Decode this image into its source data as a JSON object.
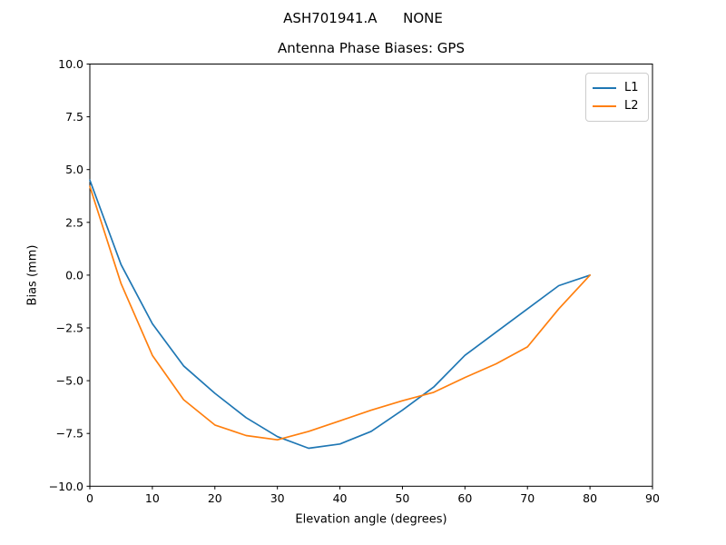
{
  "figure": {
    "suptitle": "ASH701941.A      NONE",
    "background": "#ffffff"
  },
  "chart_data": {
    "type": "line",
    "title": "Antenna Phase Biases: GPS",
    "xlabel": "Elevation angle (degrees)",
    "ylabel": "Bias (mm)",
    "xlim": [
      0,
      90
    ],
    "ylim": [
      -10,
      10
    ],
    "grid": false,
    "legend_position": "upper right",
    "xticks": [
      0,
      10,
      20,
      30,
      40,
      50,
      60,
      70,
      80,
      90
    ],
    "xtick_labels": [
      "0",
      "10",
      "20",
      "30",
      "40",
      "50",
      "60",
      "70",
      "80",
      "90"
    ],
    "yticks": [
      10,
      7.5,
      5,
      2.5,
      0,
      -2.5,
      -5,
      -7.5,
      -10
    ],
    "ytick_labels": [
      "10.0",
      "7.5",
      "5.0",
      "2.5",
      "0.0",
      "−2.5",
      "−5.0",
      "−7.5",
      "−10.0"
    ],
    "x": [
      0,
      5,
      10,
      15,
      20,
      25,
      30,
      35,
      40,
      45,
      50,
      55,
      60,
      65,
      70,
      75,
      80
    ],
    "series": [
      {
        "name": "L1",
        "color": "#1f77b4",
        "values": [
          4.5,
          0.5,
          -2.3,
          -4.3,
          -5.6,
          -6.75,
          -7.65,
          -8.2,
          -8.0,
          -7.4,
          -6.4,
          -5.3,
          -3.8,
          -2.7,
          -1.6,
          -0.5,
          0.0
        ]
      },
      {
        "name": "L2",
        "color": "#ff7f0e",
        "values": [
          4.2,
          -0.4,
          -3.8,
          -5.9,
          -7.1,
          -7.6,
          -7.8,
          -7.4,
          -6.9,
          -6.4,
          -5.95,
          -5.55,
          -4.85,
          -4.2,
          -3.4,
          -1.6,
          0.0
        ]
      }
    ]
  }
}
